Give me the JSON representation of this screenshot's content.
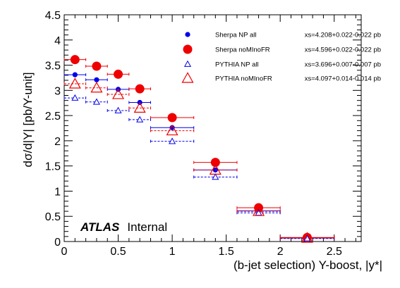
{
  "chart_data": {
    "type": "scatter",
    "xlabel": "(b-jet selection) Y-boost, |y*|",
    "ylabel": "dσ/d|Y| [pb/Y-unit]",
    "xlim": [
      0,
      2.75
    ],
    "ylim": [
      0,
      4.5
    ],
    "x_ticks": [
      "0",
      "0.5",
      "1",
      "1.5",
      "2",
      "2.5"
    ],
    "y_ticks": [
      "0",
      "0.5",
      "1",
      "1.5",
      "2",
      "2.5",
      "3",
      "3.5",
      "4",
      "4.5"
    ],
    "annotation": {
      "bold": "ATLAS",
      "plain": "Internal"
    },
    "legend_placement": "top-right",
    "bins": [
      {
        "x": 0.1,
        "xlo": 0.0,
        "xhi": 0.2
      },
      {
        "x": 0.3,
        "xlo": 0.2,
        "xhi": 0.4
      },
      {
        "x": 0.5,
        "xlo": 0.4,
        "xhi": 0.6
      },
      {
        "x": 0.7,
        "xlo": 0.6,
        "xhi": 0.8
      },
      {
        "x": 1.0,
        "xlo": 0.8,
        "xhi": 1.2
      },
      {
        "x": 1.4,
        "xlo": 1.2,
        "xhi": 1.6
      },
      {
        "x": 1.8,
        "xlo": 1.6,
        "xhi": 2.0
      },
      {
        "x": 2.25,
        "xlo": 2.0,
        "xhi": 2.5
      }
    ],
    "series": [
      {
        "name": "Sherpa NP all",
        "xs": "xs=4.208+0.022-0.022 pb",
        "color": "#0000ee",
        "marker": "dot-small",
        "line": "solid",
        "values": [
          3.31,
          3.21,
          3.02,
          2.76,
          2.26,
          1.42,
          0.61,
          0.07
        ]
      },
      {
        "name": "Sherpa noMInoFR",
        "xs": "xs=4.596+0.022-0.022 pb",
        "color": "#ee0000",
        "marker": "dot-large",
        "line": "solid",
        "values": [
          3.61,
          3.48,
          3.32,
          3.03,
          2.46,
          1.57,
          0.67,
          0.08
        ]
      },
      {
        "name": "PYTHIA NP all",
        "xs": "xs=3.696+0.007-0.007 pb",
        "color": "#0000ee",
        "marker": "triangle-small",
        "line": "dashed",
        "values": [
          2.85,
          2.77,
          2.6,
          2.42,
          1.99,
          1.28,
          0.57,
          0.06
        ]
      },
      {
        "name": "PYTHIA noMInoFR",
        "xs": "xs=4.097+0.014-0.014 pb",
        "color": "#ee0000",
        "marker": "triangle-large",
        "line": "dashed",
        "values": [
          3.13,
          3.05,
          2.92,
          2.65,
          2.2,
          1.42,
          0.6,
          0.07
        ]
      }
    ]
  }
}
